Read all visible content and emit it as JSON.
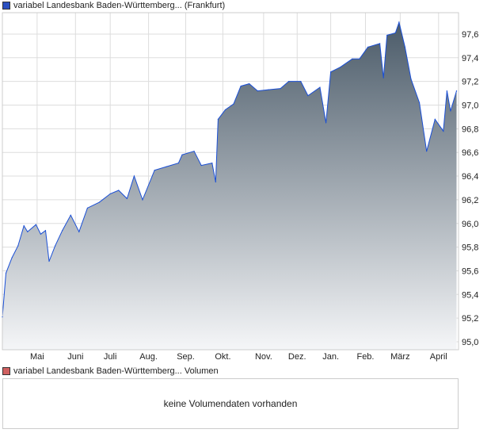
{
  "legend_price": "variabel Landesbank Baden-Württemberg... (Frankfurt)",
  "legend_volume": "variabel Landesbank Baden-Württemberg... Volumen",
  "volume_message": "keine Volumendaten vorhanden",
  "colors": {
    "line": "#1a4fd6",
    "fill_top": "#4b5b69",
    "fill_bottom": "#f5f6f8",
    "price_swatch": "#2a4fc0",
    "volume_swatch": "#d06060"
  },
  "chart_data": {
    "type": "area",
    "title": "",
    "xlabel": "",
    "ylabel": "",
    "xlim": [
      0,
      380
    ],
    "ylim": [
      94.95,
      97.82
    ],
    "grid": true,
    "x_ticks": [
      {
        "day": 29,
        "label": "Mai"
      },
      {
        "day": 61,
        "label": "Juni"
      },
      {
        "day": 90,
        "label": "Juli"
      },
      {
        "day": 122,
        "label": "Aug."
      },
      {
        "day": 153,
        "label": "Sep."
      },
      {
        "day": 184,
        "label": "Okt."
      },
      {
        "day": 218,
        "label": "Nov."
      },
      {
        "day": 246,
        "label": "Dez."
      },
      {
        "day": 274,
        "label": "Jan."
      },
      {
        "day": 303,
        "label": "Feb."
      },
      {
        "day": 332,
        "label": "März"
      },
      {
        "day": 364,
        "label": "April"
      }
    ],
    "y_ticks": [
      {
        "v": 95.0,
        "label": "95,0"
      },
      {
        "v": 95.2,
        "label": "95,2"
      },
      {
        "v": 95.4,
        "label": "95,4"
      },
      {
        "v": 95.6,
        "label": "95,6"
      },
      {
        "v": 95.8,
        "label": "95,8"
      },
      {
        "v": 96.0,
        "label": "96,0"
      },
      {
        "v": 96.2,
        "label": "96,2"
      },
      {
        "v": 96.4,
        "label": "96,4"
      },
      {
        "v": 96.6,
        "label": "96,6"
      },
      {
        "v": 96.8,
        "label": "96,8"
      },
      {
        "v": 97.0,
        "label": "97,0"
      },
      {
        "v": 97.2,
        "label": "97,2"
      },
      {
        "v": 97.4,
        "label": "97,4"
      },
      {
        "v": 97.6,
        "label": "97,6"
      }
    ],
    "series": [
      {
        "name": "variabel Landesbank Baden-Württemberg... (Frankfurt)",
        "x": [
          0,
          3,
          8,
          13,
          18,
          21,
          28,
          32,
          36,
          39,
          44,
          50,
          57,
          64,
          71,
          81,
          90,
          97,
          104,
          110,
          117,
          127,
          137,
          147,
          150,
          160,
          166,
          175,
          178,
          180,
          186,
          193,
          199,
          206,
          213,
          222,
          232,
          239,
          249,
          255,
          265,
          270,
          274,
          282,
          292,
          298,
          305,
          315,
          318,
          321,
          328,
          331,
          336,
          341,
          348,
          354,
          361,
          368,
          371,
          374,
          379
        ],
        "y": [
          95.21,
          95.58,
          95.71,
          95.81,
          95.98,
          95.93,
          95.99,
          95.91,
          95.94,
          95.68,
          95.81,
          95.94,
          96.07,
          95.93,
          96.13,
          96.18,
          96.25,
          96.28,
          96.21,
          96.4,
          96.2,
          96.45,
          96.48,
          96.51,
          96.58,
          96.61,
          96.49,
          96.51,
          96.35,
          96.88,
          96.96,
          97.01,
          97.16,
          97.18,
          97.12,
          97.13,
          97.14,
          97.2,
          97.2,
          97.08,
          97.15,
          96.85,
          97.28,
          97.32,
          97.39,
          97.39,
          97.49,
          97.52,
          97.23,
          97.59,
          97.61,
          97.7,
          97.49,
          97.22,
          97.02,
          96.61,
          96.88,
          96.78,
          97.12,
          96.95,
          97.12
        ]
      }
    ]
  }
}
